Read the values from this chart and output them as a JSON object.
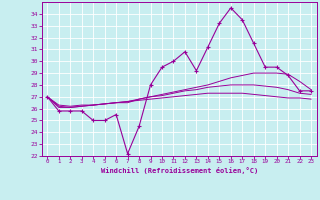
{
  "xlabel": "Windchill (Refroidissement éolien,°C)",
  "background_color": "#c8eef0",
  "grid_color": "#ffffff",
  "line_color": "#990099",
  "x_hours": [
    0,
    1,
    2,
    3,
    4,
    5,
    6,
    7,
    8,
    9,
    10,
    11,
    12,
    13,
    14,
    15,
    16,
    17,
    18,
    19,
    20,
    21,
    22,
    23
  ],
  "y_main": [
    27.0,
    25.8,
    25.8,
    25.8,
    25.0,
    25.0,
    25.5,
    22.2,
    24.5,
    28.0,
    29.5,
    30.0,
    30.8,
    29.2,
    31.2,
    33.2,
    34.5,
    33.5,
    31.5,
    29.5,
    29.5,
    28.8,
    27.5,
    27.5
  ],
  "y_smooth1": [
    27.0,
    26.3,
    26.2,
    26.3,
    26.3,
    26.4,
    26.5,
    26.5,
    26.8,
    27.0,
    27.2,
    27.4,
    27.6,
    27.8,
    28.0,
    28.3,
    28.6,
    28.8,
    29.0,
    29.0,
    29.0,
    28.9,
    28.3,
    27.6
  ],
  "y_smooth2": [
    27.0,
    26.2,
    26.1,
    26.2,
    26.3,
    26.4,
    26.5,
    26.6,
    26.8,
    27.0,
    27.1,
    27.3,
    27.5,
    27.6,
    27.8,
    27.9,
    28.0,
    28.0,
    28.0,
    27.9,
    27.8,
    27.6,
    27.3,
    27.2
  ],
  "y_smooth3": [
    27.0,
    26.1,
    26.1,
    26.2,
    26.3,
    26.4,
    26.5,
    26.6,
    26.7,
    26.8,
    26.9,
    27.0,
    27.1,
    27.2,
    27.3,
    27.3,
    27.3,
    27.3,
    27.2,
    27.1,
    27.0,
    26.9,
    26.9,
    26.8
  ],
  "ylim": [
    22,
    35
  ],
  "yticks": [
    22,
    23,
    24,
    25,
    26,
    27,
    28,
    29,
    30,
    31,
    32,
    33,
    34
  ],
  "xticks": [
    0,
    1,
    2,
    3,
    4,
    5,
    6,
    7,
    8,
    9,
    10,
    11,
    12,
    13,
    14,
    15,
    16,
    17,
    18,
    19,
    20,
    21,
    22,
    23
  ]
}
